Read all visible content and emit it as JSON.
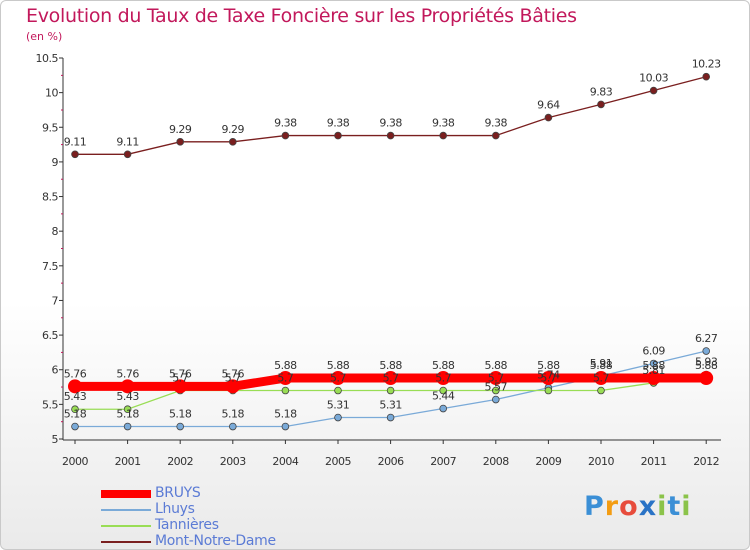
{
  "chart_data": {
    "type": "line",
    "title": "Evolution du Taux de Taxe Foncière sur les Propriétés Bâties",
    "subtitle": "(en %)",
    "xlabel": "",
    "ylabel": "",
    "categories": [
      "2000",
      "2001",
      "2002",
      "2003",
      "2004",
      "2005",
      "2006",
      "2007",
      "2008",
      "2009",
      "2010",
      "2011",
      "2012"
    ],
    "ylim": [
      5,
      10.5
    ],
    "yticks": [
      "5",
      "5.5",
      "6",
      "6.5",
      "7",
      "7.5",
      "8",
      "8.5",
      "9",
      "9.5",
      "10",
      "10.5"
    ],
    "grid": false,
    "legend_position": "bottom-left",
    "series": [
      {
        "name": "BRUYS",
        "color": "#ff0000",
        "line": "thick",
        "values": [
          5.76,
          5.76,
          5.76,
          5.76,
          5.88,
          5.88,
          5.88,
          5.88,
          5.88,
          5.88,
          5.88,
          5.88,
          5.88
        ],
        "labels": [
          "5.76",
          "5.76",
          "5.76",
          "5.76",
          "5.88",
          "5.88",
          "5.88",
          "5.88",
          "5.88",
          "5.88",
          "5.88",
          "5.88",
          "5.88"
        ]
      },
      {
        "name": "Lhuys",
        "color": "#7aaad8",
        "line": "thin",
        "values": [
          5.18,
          5.18,
          5.18,
          5.18,
          5.18,
          5.31,
          5.31,
          5.44,
          5.57,
          5.74,
          5.91,
          6.09,
          6.27
        ],
        "labels": [
          "5.18",
          "5.18",
          "5.18",
          "5.18",
          "5.18",
          "5.31",
          "5.31",
          "5.44",
          "5.57",
          "5.74",
          "5.91",
          "6.09",
          "6.27"
        ]
      },
      {
        "name": "Tannières",
        "color": "#99dd55",
        "line": "thin",
        "values": [
          5.43,
          5.43,
          5.7,
          5.7,
          5.7,
          5.7,
          5.7,
          5.7,
          5.7,
          5.7,
          5.7,
          5.81,
          5.93
        ],
        "labels": [
          "5.43",
          "5.43",
          "5.7",
          "5.7",
          "5.7",
          "5.7",
          "5.7",
          "5.7",
          "5.7",
          "5.7",
          "5.7",
          "5.81",
          "5.93"
        ]
      },
      {
        "name": "Mont-Notre-Dame",
        "color": "#7a1f1f",
        "line": "thin",
        "values": [
          9.11,
          9.11,
          9.29,
          9.29,
          9.38,
          9.38,
          9.38,
          9.38,
          9.38,
          9.64,
          9.83,
          10.03,
          10.23
        ],
        "labels": [
          "9.11",
          "9.11",
          "9.29",
          "9.29",
          "9.38",
          "9.38",
          "9.38",
          "9.38",
          "9.38",
          "9.64",
          "9.83",
          "10.03",
          "10.23"
        ]
      }
    ]
  },
  "legend": {
    "items": [
      {
        "label": "BRUYS",
        "color": "#ff0000"
      },
      {
        "label": "Lhuys",
        "color": "#7aaad8"
      },
      {
        "label": "Tannières",
        "color": "#99dd55"
      },
      {
        "label": "Mont-Notre-Dame",
        "color": "#7a1f1f"
      }
    ]
  },
  "logo": {
    "text": "Proxiti",
    "letters": [
      "P",
      "r",
      "o",
      "x",
      "i",
      "t",
      "i"
    ],
    "colors": [
      "#3b8fd6",
      "#f39c12",
      "#e74c3c",
      "#2a73c6",
      "#8bc34a",
      "#3b8fd6",
      "#8bc34a"
    ]
  }
}
